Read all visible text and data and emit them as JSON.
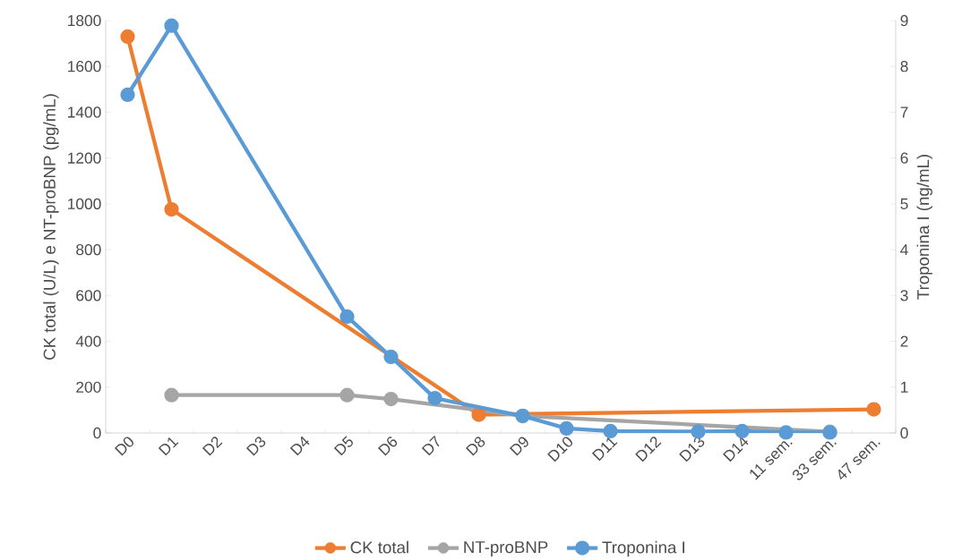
{
  "chart_data": {
    "type": "line",
    "categories": [
      "D0",
      "D1",
      "D2",
      "D3",
      "D4",
      "D5",
      "D6",
      "D7",
      "D8",
      "D9",
      "D10",
      "D11",
      "D12",
      "D13",
      "D14",
      "11 sem.",
      "33 sem.",
      "47 sem."
    ],
    "series": [
      {
        "name": "CK total",
        "color": "#ed7d31",
        "values": [
          1730,
          976,
          null,
          null,
          null,
          null,
          null,
          null,
          80,
          null,
          null,
          null,
          null,
          null,
          null,
          null,
          null,
          103
        ]
      },
      {
        "name": "NT-proBNP",
        "color": "#a5a5a5",
        "values": [
          null,
          165,
          null,
          null,
          null,
          165,
          148,
          null,
          null,
          75,
          null,
          null,
          null,
          null,
          null,
          null,
          5,
          null
        ]
      },
      {
        "name": "Troponina I",
        "color": "#5b9bd5",
        "axis": "y2",
        "values": [
          7.38,
          8.89,
          null,
          null,
          null,
          2.54,
          1.66,
          0.76,
          null,
          0.37,
          0.1,
          0.04,
          null,
          0.03,
          0.04,
          0.01,
          0.01,
          null
        ]
      }
    ],
    "ylabel": "CK total (U/L) e NT-proBNP (pg/mL)",
    "y2label": "Troponina I (ng/mL)",
    "ylim": [
      0,
      1800
    ],
    "yticks": [
      0,
      200,
      400,
      600,
      800,
      1000,
      1200,
      1400,
      1600,
      1800
    ],
    "y2lim": [
      0,
      9
    ],
    "y2ticks": [
      0,
      1,
      2,
      3,
      4,
      5,
      6,
      7,
      8,
      9
    ],
    "legend": "bottom",
    "marker": "circle",
    "line_style": "solid"
  }
}
